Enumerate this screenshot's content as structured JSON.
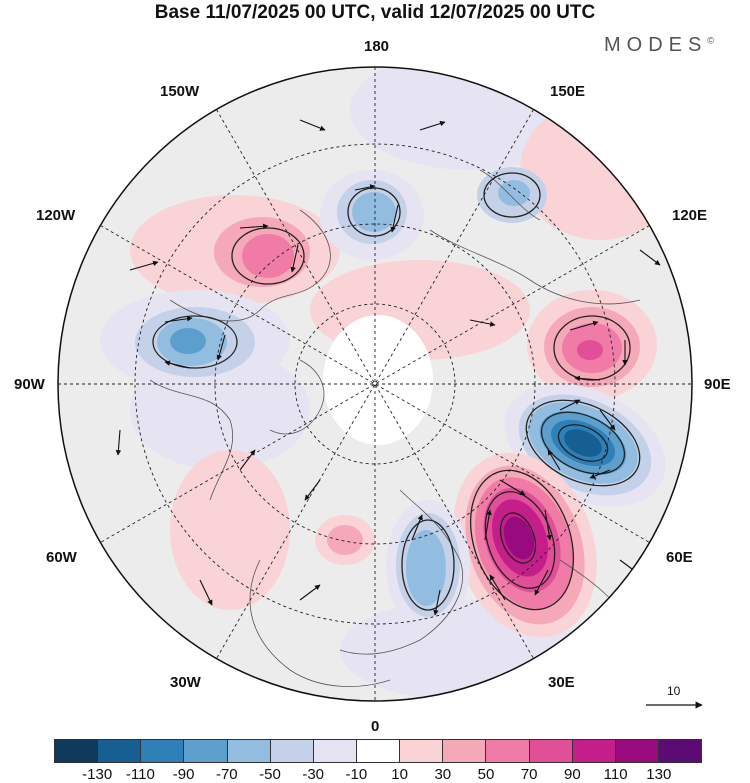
{
  "title": "Base 11/07/2025 00 UTC, valid 12/07/2025 00 UTC",
  "logo": {
    "text": "MODES",
    "mark": "©"
  },
  "longitude_labels": {
    "top": "180",
    "bottom": "0",
    "left": "90W",
    "right": "90E",
    "upper_left_1": "150W",
    "upper_left_2": "120W",
    "upper_right_1": "150E",
    "upper_right_2": "120E",
    "lower_left_1": "60W",
    "lower_left_2": "30W",
    "lower_right_1": "60E",
    "lower_right_2": "30E"
  },
  "colorbar": {
    "colors": [
      "#0d3a5c",
      "#155f93",
      "#2f80b8",
      "#5c9fcc",
      "#93bde0",
      "#c4d1e8",
      "#e6e4f2",
      "#ffffff",
      "#f9d3d6",
      "#f5a8b8",
      "#ef7ba6",
      "#e14f98",
      "#c41e8a",
      "#9a0a7f",
      "#5c0b74"
    ],
    "ticks": [
      "-130",
      "-110",
      "-90",
      "-70",
      "-50",
      "-30",
      "-10",
      "10",
      "30",
      "50",
      "70",
      "90",
      "110",
      "130"
    ]
  },
  "reference_vector": {
    "label": "10",
    "icon": "arrow-right-icon"
  },
  "anomaly_centers": [
    {
      "name": "center-north-america-negative",
      "value": -45
    },
    {
      "name": "center-kara-sea-negative",
      "value": -100
    },
    {
      "name": "center-ural-positive",
      "value": 110
    },
    {
      "name": "center-siberia-positive",
      "value": 65
    },
    {
      "name": "center-pacific-negative",
      "value": -40
    },
    {
      "name": "center-canada-positive",
      "value": 55
    },
    {
      "name": "center-baltic-negative",
      "value": -50
    },
    {
      "name": "center-east-siberia-negative",
      "value": -30
    }
  ]
}
